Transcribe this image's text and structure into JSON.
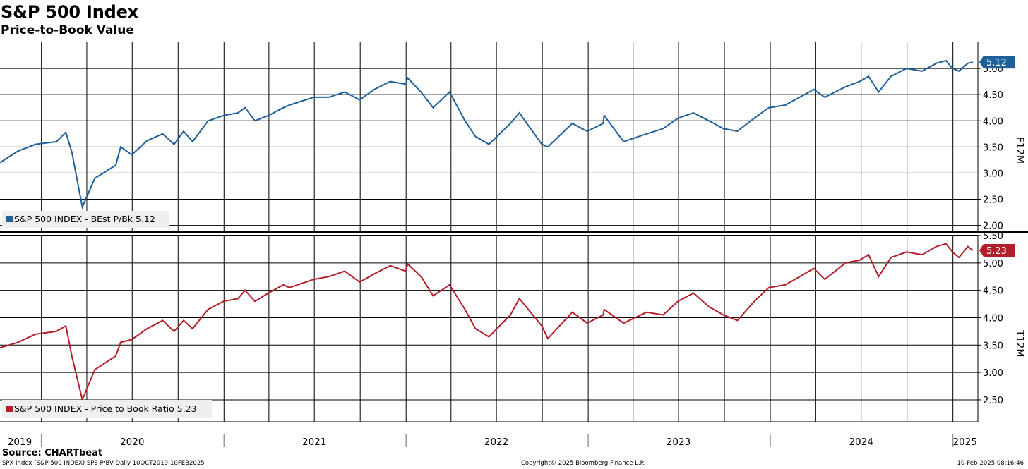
{
  "header": {
    "title": "S&P 500 Index",
    "subtitle": "Price-to-Book Value"
  },
  "footer": {
    "source": "Source: CHARTbeat",
    "left": "SPX Index (S&P 500 INDEX) SPS P/BV  Daily 10OCT2019-10FEB2025",
    "middle": "Copyright© 2025 Bloomberg Finance L.P.",
    "right": "10-Feb-2025 08:16:46"
  },
  "colors": {
    "blue": "#1f5f9c",
    "red": "#b41e2a",
    "grid": "#000000"
  },
  "chart_data": [
    {
      "type": "line",
      "axis_side_label": "F12M",
      "ylim": [
        1.9,
        5.5
      ],
      "yticks": [
        "2.00",
        "2.50",
        "3.00",
        "3.50",
        "4.00",
        "4.50",
        "5.00"
      ],
      "grid": true,
      "legend": {
        "label": "S&P 500 INDEX - BEst P/Bk 5.12",
        "position": "bottom-left"
      },
      "last_value_tag": "5.12",
      "color": "blue",
      "series": [
        {
          "name": "S&P 500 INDEX - BEst P/Bk",
          "x": [
            "2019-10-10",
            "2019-11-15",
            "2019-12-20",
            "2020-01-31",
            "2020-02-19",
            "2020-03-02",
            "2020-03-23",
            "2020-04-17",
            "2020-05-29",
            "2020-06-08",
            "2020-06-30",
            "2020-07-31",
            "2020-08-31",
            "2020-09-23",
            "2020-10-12",
            "2020-10-30",
            "2020-11-30",
            "2020-12-31",
            "2021-01-29",
            "2021-02-12",
            "2021-03-04",
            "2021-03-31",
            "2021-04-30",
            "2021-05-12",
            "2021-06-30",
            "2021-07-30",
            "2021-08-31",
            "2021-09-30",
            "2021-10-29",
            "2021-11-30",
            "2021-12-31",
            "2022-01-04",
            "2022-01-31",
            "2022-02-24",
            "2022-03-29",
            "2022-04-29",
            "2022-05-20",
            "2022-06-16",
            "2022-07-29",
            "2022-08-16",
            "2022-09-30",
            "2022-10-12",
            "2022-11-30",
            "2022-12-30",
            "2023-01-31",
            "2023-02-02",
            "2023-03-13",
            "2023-04-28",
            "2023-05-31",
            "2023-06-30",
            "2023-07-31",
            "2023-08-31",
            "2023-09-29",
            "2023-10-27",
            "2023-11-30",
            "2023-12-29",
            "2024-01-31",
            "2024-02-29",
            "2024-03-28",
            "2024-04-19",
            "2024-05-31",
            "2024-06-28",
            "2024-07-16",
            "2024-08-05",
            "2024-08-30",
            "2024-09-30",
            "2024-10-31",
            "2024-11-29",
            "2024-12-18",
            "2024-12-31",
            "2025-01-13",
            "2025-01-31",
            "2025-02-10"
          ],
          "y": [
            3.2,
            3.42,
            3.55,
            3.6,
            3.78,
            3.4,
            2.35,
            2.9,
            3.15,
            3.5,
            3.35,
            3.62,
            3.75,
            3.55,
            3.8,
            3.6,
            4.0,
            4.1,
            4.15,
            4.25,
            4.0,
            4.1,
            4.25,
            4.3,
            4.45,
            4.45,
            4.55,
            4.4,
            4.6,
            4.75,
            4.7,
            4.82,
            4.55,
            4.25,
            4.55,
            4.0,
            3.7,
            3.55,
            3.95,
            4.15,
            3.55,
            3.5,
            3.95,
            3.8,
            3.95,
            4.1,
            3.6,
            3.75,
            3.85,
            4.05,
            4.15,
            4.0,
            3.85,
            3.8,
            4.05,
            4.25,
            4.3,
            4.45,
            4.6,
            4.45,
            4.65,
            4.75,
            4.85,
            4.55,
            4.85,
            5.0,
            4.95,
            5.1,
            5.15,
            5.0,
            4.95,
            5.1,
            5.12
          ]
        }
      ]
    },
    {
      "type": "line",
      "axis_side_label": "T12M",
      "ylim": [
        2.1,
        5.5
      ],
      "yticks": [
        "2.50",
        "3.00",
        "3.50",
        "4.00",
        "4.50",
        "5.00",
        "5.50"
      ],
      "grid": true,
      "legend": {
        "label": "S&P 500 INDEX - Price to Book Ratio 5.23",
        "position": "bottom-left"
      },
      "last_value_tag": "5.23",
      "color": "red",
      "series": [
        {
          "name": "S&P 500 INDEX - Price to Book Ratio",
          "x": [
            "2019-10-10",
            "2019-11-15",
            "2019-12-20",
            "2020-01-31",
            "2020-02-19",
            "2020-03-02",
            "2020-03-23",
            "2020-04-17",
            "2020-05-29",
            "2020-06-08",
            "2020-06-30",
            "2020-07-31",
            "2020-08-31",
            "2020-09-23",
            "2020-10-12",
            "2020-10-30",
            "2020-11-30",
            "2020-12-31",
            "2021-01-29",
            "2021-02-12",
            "2021-03-04",
            "2021-03-31",
            "2021-04-30",
            "2021-05-12",
            "2021-06-30",
            "2021-07-30",
            "2021-08-31",
            "2021-09-30",
            "2021-10-29",
            "2021-11-30",
            "2021-12-31",
            "2022-01-04",
            "2022-01-31",
            "2022-02-24",
            "2022-03-29",
            "2022-04-29",
            "2022-05-20",
            "2022-06-16",
            "2022-07-29",
            "2022-08-16",
            "2022-09-30",
            "2022-10-12",
            "2022-11-30",
            "2022-12-30",
            "2023-01-31",
            "2023-02-02",
            "2023-03-13",
            "2023-04-28",
            "2023-05-31",
            "2023-06-30",
            "2023-07-31",
            "2023-08-31",
            "2023-09-29",
            "2023-10-27",
            "2023-11-30",
            "2023-12-29",
            "2024-01-31",
            "2024-02-29",
            "2024-03-28",
            "2024-04-19",
            "2024-05-31",
            "2024-06-28",
            "2024-07-16",
            "2024-08-05",
            "2024-08-30",
            "2024-09-30",
            "2024-10-31",
            "2024-11-29",
            "2024-12-18",
            "2024-12-31",
            "2025-01-13",
            "2025-01-31",
            "2025-02-10"
          ],
          "y": [
            3.45,
            3.55,
            3.7,
            3.75,
            3.85,
            3.3,
            2.5,
            3.05,
            3.3,
            3.55,
            3.6,
            3.8,
            3.95,
            3.75,
            3.95,
            3.8,
            4.15,
            4.3,
            4.35,
            4.5,
            4.3,
            4.45,
            4.6,
            4.55,
            4.7,
            4.75,
            4.85,
            4.65,
            4.8,
            4.95,
            4.85,
            4.98,
            4.75,
            4.4,
            4.6,
            4.15,
            3.8,
            3.65,
            4.05,
            4.35,
            3.85,
            3.62,
            4.1,
            3.9,
            4.05,
            4.15,
            3.9,
            4.1,
            4.05,
            4.3,
            4.45,
            4.2,
            4.05,
            3.95,
            4.3,
            4.55,
            4.6,
            4.75,
            4.9,
            4.7,
            5.0,
            5.05,
            5.15,
            4.75,
            5.1,
            5.2,
            5.15,
            5.3,
            5.35,
            5.2,
            5.1,
            5.3,
            5.23
          ]
        }
      ]
    }
  ],
  "x_axis": {
    "labels": [
      {
        "text": "2019",
        "date": "2019-12-15"
      },
      {
        "text": "2020",
        "date": "2020-07-01"
      },
      {
        "text": "2021",
        "date": "2021-07-01"
      },
      {
        "text": "2022",
        "date": "2022-07-01"
      },
      {
        "text": "2023",
        "date": "2023-07-01"
      },
      {
        "text": "2024",
        "date": "2024-07-01"
      },
      {
        "text": "2025",
        "date": "2025-01-25"
      }
    ],
    "year_boundaries": [
      "2020-01-01",
      "2021-01-01",
      "2022-01-01",
      "2023-01-01",
      "2024-01-01",
      "2025-01-01"
    ]
  }
}
